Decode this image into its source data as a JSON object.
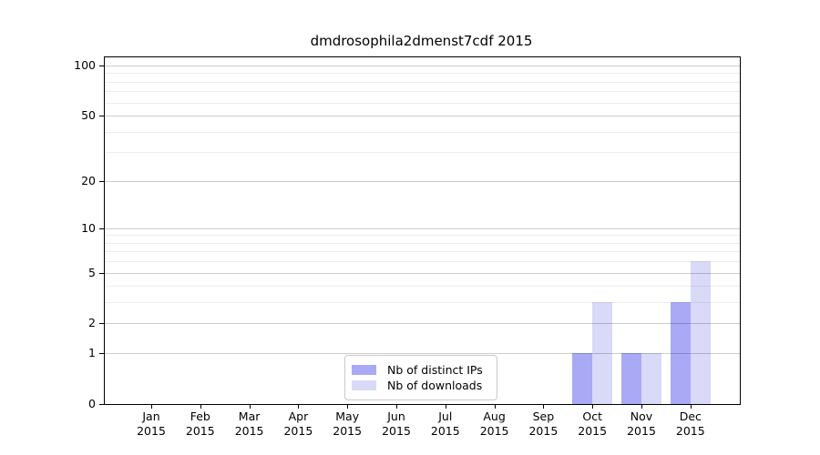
{
  "chart_data": {
    "type": "bar",
    "title": "dmdrosophila2dmenst7cdf 2015",
    "grid": true,
    "x_categories": [
      {
        "month": "Jan",
        "year": "2015"
      },
      {
        "month": "Feb",
        "year": "2015"
      },
      {
        "month": "Mar",
        "year": "2015"
      },
      {
        "month": "Apr",
        "year": "2015"
      },
      {
        "month": "May",
        "year": "2015"
      },
      {
        "month": "Jun",
        "year": "2015"
      },
      {
        "month": "Jul",
        "year": "2015"
      },
      {
        "month": "Aug",
        "year": "2015"
      },
      {
        "month": "Sep",
        "year": "2015"
      },
      {
        "month": "Oct",
        "year": "2015"
      },
      {
        "month": "Nov",
        "year": "2015"
      },
      {
        "month": "Dec",
        "year": "2015"
      }
    ],
    "y_axis": {
      "scale": "log1p",
      "min": 0,
      "max": 112,
      "tick_labels": [
        0,
        1,
        2,
        5,
        10,
        20,
        50,
        100
      ],
      "minor_gridlines": [
        3,
        4,
        6,
        7,
        8,
        9,
        30,
        40,
        60,
        70,
        80,
        90
      ]
    },
    "series": [
      {
        "name": "Nb of distinct IPs",
        "color": "#a9a9f5",
        "values": [
          0,
          0,
          0,
          0,
          0,
          0,
          0,
          0,
          0,
          1,
          1,
          3
        ]
      },
      {
        "name": "Nb of downloads",
        "color": "#d9d9f8",
        "values": [
          0,
          0,
          0,
          0,
          0,
          0,
          0,
          0,
          0,
          3,
          1,
          6
        ]
      }
    ],
    "legend": {
      "position": "bottom-center"
    }
  }
}
